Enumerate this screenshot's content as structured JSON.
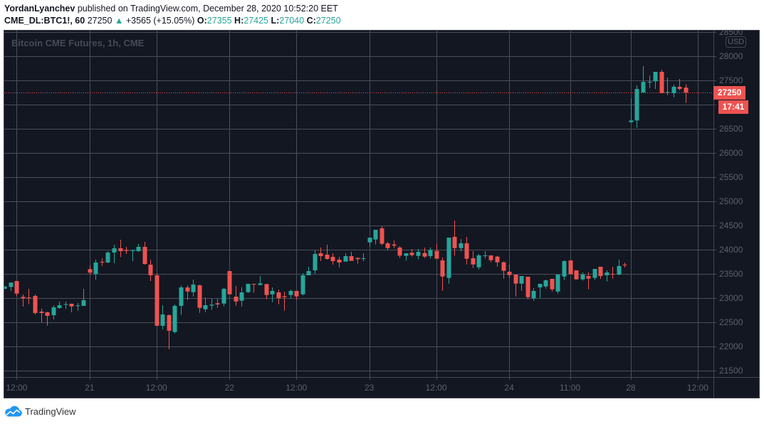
{
  "header": {
    "author": "YordanLyanchev",
    "published_text": "published on TradingView.com, December 28, 2020 10:52:20 EET",
    "symbol": "CME_DL:BTC1!, 60",
    "last_price": "27250",
    "change_icon": "up-triangle-icon",
    "change_glyph": "▲",
    "change": "+3565 (+15.05%)",
    "ohlc": [
      {
        "label": "O:",
        "value": "27355"
      },
      {
        "label": "H:",
        "value": "27425"
      },
      {
        "label": "L:",
        "value": "27040"
      },
      {
        "label": "C:",
        "value": "27250"
      }
    ]
  },
  "chart": {
    "watermark": "Bitcoin CME Futures, 1h, CME",
    "currency_badge": "USD",
    "price_label": "27250",
    "countdown_label": "17:41",
    "colors": {
      "background": "#131722",
      "up": "#26a69a",
      "down": "#ef5350",
      "grid": "#4a4e5a"
    }
  },
  "footer": {
    "brand": "TradingView",
    "logo_icon": "tradingview-cloud-icon"
  },
  "chart_data": {
    "type": "candlestick",
    "title": "Bitcoin CME Futures, 1h, CME",
    "symbol": "CME_DL:BTC1!",
    "interval": "60",
    "xlabel": "",
    "ylabel": "USD",
    "grid": true,
    "ylim": [
      21372,
      28534
    ],
    "y_ticks": [
      28500,
      28000,
      27500,
      27000,
      26500,
      26000,
      25500,
      25000,
      24500,
      24000,
      23500,
      23000,
      22500,
      22000,
      21500
    ],
    "x_ticks": [
      {
        "label": "12:00",
        "slot": 3
      },
      {
        "label": "21",
        "slot": 15
      },
      {
        "label": "12:00",
        "slot": 26
      },
      {
        "label": "22",
        "slot": 38
      },
      {
        "label": "12:00",
        "slot": 49
      },
      {
        "label": "23",
        "slot": 61
      },
      {
        "label": "12:00",
        "slot": 72
      },
      {
        "label": "24",
        "slot": 84
      },
      {
        "label": "11:00",
        "slot": 94
      },
      {
        "label": "28",
        "slot": 104
      },
      {
        "label": "12:00",
        "slot": 115
      }
    ],
    "last_price": 27250,
    "last_bar": {
      "open": 27355,
      "high": 27425,
      "low": 27040,
      "close": 27250
    },
    "change": 3565,
    "change_pct": 15.05,
    "series": [
      {
        "name": "BTC1!",
        "fields": [
          "open",
          "high",
          "low",
          "close"
        ],
        "ohlc": [
          [
            23196,
            23250,
            23190,
            23244
          ],
          [
            23235,
            23330,
            23147,
            23324
          ],
          [
            23357,
            23360,
            23049,
            23097
          ],
          [
            23029,
            23078,
            22832,
            23000
          ],
          [
            23015,
            23196,
            22882,
            23005
          ],
          [
            23049,
            23078,
            22666,
            22696
          ],
          [
            22725,
            22784,
            22500,
            22696
          ],
          [
            22710,
            22721,
            22435,
            22637
          ],
          [
            22651,
            22853,
            22563,
            22813
          ],
          [
            22799,
            22931,
            22784,
            22857
          ],
          [
            22870,
            22931,
            22784,
            22878
          ],
          [
            22887,
            22890,
            22710,
            22832
          ],
          [
            22843,
            22901,
            22744,
            22853
          ],
          [
            22843,
            23196,
            22843,
            22960
          ],
          [
            23603,
            23685,
            23490,
            23529
          ],
          [
            23504,
            23799,
            23382,
            23740
          ],
          [
            23755,
            23828,
            23671,
            23740
          ],
          [
            23740,
            23971,
            23725,
            23946
          ],
          [
            23946,
            24107,
            23725,
            24034
          ],
          [
            24034,
            24210,
            23853,
            23975
          ],
          [
            24000,
            24063,
            23916,
            23980
          ],
          [
            23980,
            24000,
            23770,
            24000
          ],
          [
            23975,
            24122,
            23960,
            24063
          ],
          [
            24063,
            24166,
            23696,
            23710
          ],
          [
            23696,
            23799,
            23357,
            23475
          ],
          [
            23475,
            23519,
            22431,
            22431
          ],
          [
            22431,
            22857,
            22357,
            22666
          ],
          [
            22651,
            22666,
            21946,
            22328
          ],
          [
            22303,
            22872,
            22274,
            22843
          ],
          [
            22843,
            23265,
            22657,
            23225
          ],
          [
            23225,
            23265,
            22965,
            23141
          ],
          [
            23127,
            23387,
            23038,
            23284
          ],
          [
            23269,
            23284,
            22700,
            22803
          ],
          [
            22774,
            23015,
            22715,
            22857
          ],
          [
            22848,
            22990,
            22759,
            22868
          ],
          [
            22897,
            22990,
            22803,
            22872
          ],
          [
            22891,
            23215,
            22832,
            23196
          ],
          [
            23563,
            23563,
            23082,
            23082
          ],
          [
            23034,
            23254,
            22847,
            22935
          ],
          [
            22950,
            23230,
            22832,
            23122
          ],
          [
            23127,
            23299,
            23112,
            23299
          ],
          [
            23299,
            23299,
            23112,
            23284
          ],
          [
            23274,
            23460,
            23274,
            23309
          ],
          [
            23294,
            23294,
            22980,
            23068
          ],
          [
            23082,
            23225,
            22921,
            23152
          ],
          [
            23122,
            23181,
            22877,
            23004
          ],
          [
            23044,
            23137,
            22745,
            23024
          ],
          [
            23068,
            23181,
            22995,
            23152
          ],
          [
            23152,
            23152,
            22970,
            23039
          ],
          [
            23083,
            23519,
            23059,
            23475
          ],
          [
            23475,
            23652,
            23475,
            23563
          ],
          [
            23578,
            23990,
            23509,
            23916
          ],
          [
            23931,
            24049,
            23769,
            23872
          ],
          [
            23902,
            24107,
            23799,
            23813
          ],
          [
            23857,
            23931,
            23696,
            23769
          ],
          [
            23799,
            23857,
            23637,
            23740
          ],
          [
            23760,
            23931,
            23760,
            23872
          ],
          [
            23872,
            23960,
            23774,
            23774
          ],
          [
            23833,
            23847,
            23715,
            23809
          ],
          [
            23823,
            23931,
            23765,
            23828
          ],
          [
            24156,
            24254,
            24068,
            24254
          ],
          [
            24215,
            24416,
            24112,
            24416
          ],
          [
            24446,
            24490,
            24097,
            24127
          ],
          [
            24137,
            24166,
            23995,
            24038
          ],
          [
            24112,
            24196,
            24038,
            24088
          ],
          [
            24049,
            24078,
            23833,
            23882
          ],
          [
            23877,
            23931,
            23774,
            23931
          ],
          [
            23941,
            24019,
            23862,
            23891
          ],
          [
            23877,
            24019,
            23803,
            23960
          ],
          [
            23936,
            24049,
            23833,
            23862
          ],
          [
            23872,
            24049,
            23818,
            24000
          ],
          [
            23980,
            24127,
            23818,
            23818
          ],
          [
            23784,
            23843,
            23156,
            23450
          ],
          [
            23421,
            24254,
            23303,
            24254
          ],
          [
            24269,
            24607,
            23877,
            24038
          ],
          [
            24038,
            24225,
            23965,
            24137
          ],
          [
            24137,
            24269,
            23700,
            23818
          ],
          [
            23828,
            23975,
            23627,
            23700
          ],
          [
            23642,
            23916,
            23597,
            23887
          ],
          [
            23877,
            23975,
            23818,
            23887
          ],
          [
            23887,
            23887,
            23745,
            23789
          ],
          [
            23862,
            23877,
            23656,
            23745
          ],
          [
            23745,
            23760,
            23406,
            23568
          ],
          [
            23549,
            23696,
            23416,
            23480
          ],
          [
            23490,
            23490,
            23038,
            23303
          ],
          [
            23303,
            23460,
            23156,
            23460
          ],
          [
            23446,
            23446,
            22980,
            23024
          ],
          [
            23000,
            23210,
            22950,
            23152
          ],
          [
            23225,
            23299,
            23000,
            23299
          ],
          [
            23244,
            23387,
            23200,
            23372
          ],
          [
            23402,
            23402,
            23141,
            23186
          ],
          [
            23141,
            23490,
            23097,
            23490
          ],
          [
            23450,
            23784,
            23377,
            23769
          ],
          [
            23784,
            23784,
            23500,
            23500
          ],
          [
            23578,
            23578,
            23391,
            23391
          ],
          [
            23391,
            23534,
            23362,
            23490
          ],
          [
            23460,
            23534,
            23185,
            23406
          ],
          [
            23421,
            23607,
            23377,
            23607
          ],
          [
            23652,
            23652,
            23402,
            23460
          ],
          [
            23475,
            23578,
            23347,
            23534
          ],
          [
            23505,
            23652,
            23406,
            23495
          ],
          [
            23490,
            23799,
            23475,
            23667
          ],
          [
            23696,
            23740,
            23637,
            23681
          ],
          [
            26641,
            27132,
            26630,
            26676
          ],
          [
            26676,
            27401,
            26524,
            27328
          ],
          [
            27254,
            27799,
            27254,
            27475
          ],
          [
            27460,
            27607,
            27343,
            27475
          ],
          [
            27485,
            27681,
            27328,
            27681
          ],
          [
            27681,
            27725,
            27240,
            27240
          ],
          [
            27250,
            27563,
            27200,
            27265
          ],
          [
            27240,
            27416,
            27156,
            27372
          ],
          [
            27372,
            27534,
            27299,
            27328
          ],
          [
            27355,
            27425,
            27040,
            27250
          ]
        ]
      }
    ]
  }
}
